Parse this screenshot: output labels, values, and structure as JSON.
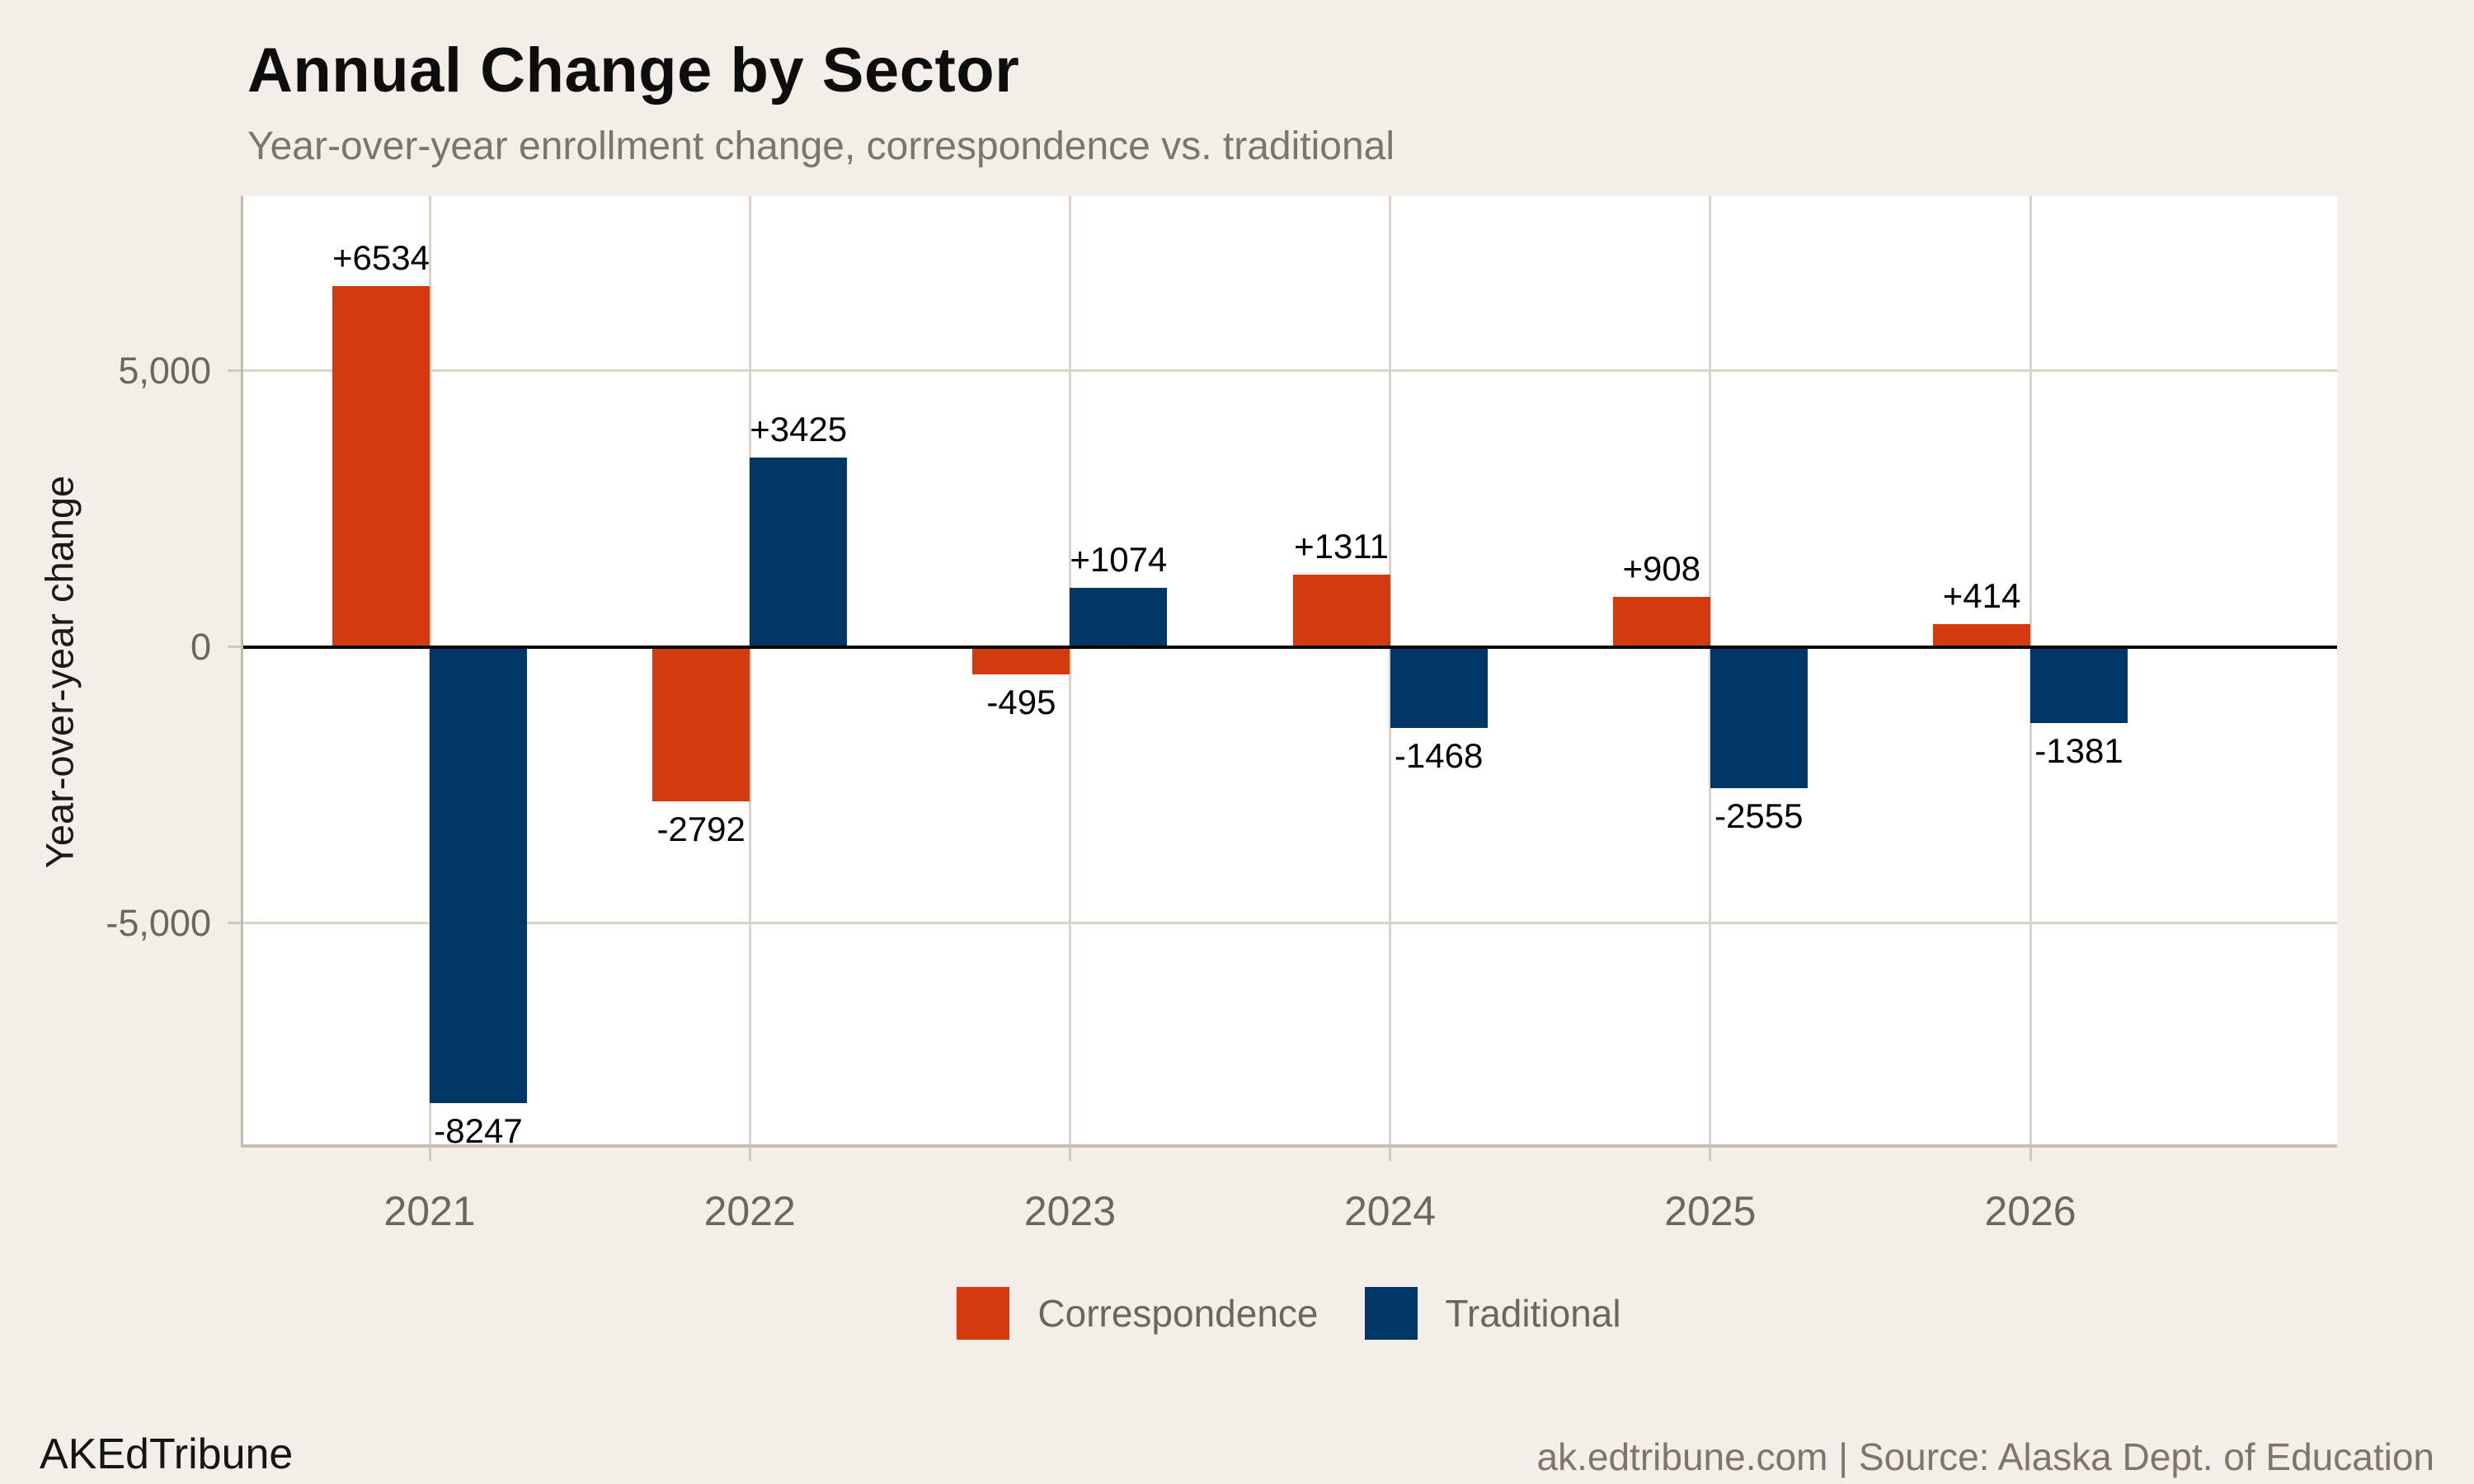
{
  "header": {
    "title": "Annual Change by Sector",
    "subtitle": "Year-over-year enrollment change, correspondence vs. traditional"
  },
  "chart_data": {
    "type": "bar",
    "categories": [
      "2021",
      "2022",
      "2023",
      "2024",
      "2025",
      "2026"
    ],
    "series": [
      {
        "name": "Correspondence",
        "color": "#d33a0e",
        "values": [
          6534,
          -2792,
          -495,
          1311,
          908,
          414
        ],
        "labels": [
          "+6534",
          "-2792",
          "-495",
          "+1311",
          "+908",
          "+414"
        ]
      },
      {
        "name": "Traditional",
        "color": "#003767",
        "values": [
          -8247,
          3425,
          1074,
          -1468,
          -2555,
          -1381
        ],
        "labels": [
          "-8247",
          "+3425",
          "+1074",
          "-1468",
          "-2555",
          "-1381"
        ]
      }
    ],
    "title": "Annual Change by Sector",
    "xlabel": "",
    "ylabel": "Year-over-year change",
    "yticks": [
      {
        "value": 5000,
        "label": "5,000"
      },
      {
        "value": 0,
        "label": "0"
      },
      {
        "value": -5000,
        "label": "-5,000"
      }
    ],
    "ylim": [
      -9000,
      8160
    ],
    "grid": true,
    "zero_line": true,
    "legend_position": "bottom",
    "value_labels": "outside-bar-end"
  },
  "colors": {
    "background": "#f3efe8",
    "panel_background": "#ffffff",
    "gridline": "#d9d4ca",
    "axis_border": "#c1bbaf",
    "zero_line": "#000000",
    "correspondence": "#d33a0e",
    "traditional": "#003767"
  },
  "footer": {
    "brand": "AKEdTribune",
    "source": "ak.edtribune.com | Source: Alaska Dept. of Education"
  }
}
